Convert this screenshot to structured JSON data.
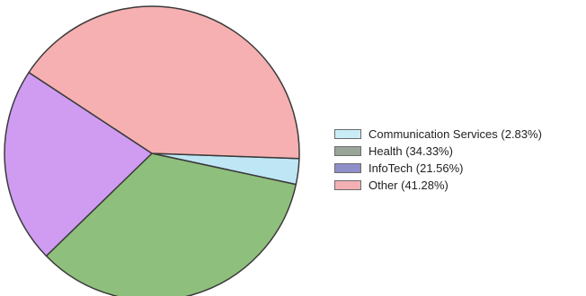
{
  "chart_data": {
    "type": "pie",
    "title": "",
    "start_angle_deg": 2,
    "direction": "clockwise",
    "slices": [
      {
        "label": "Communication Services",
        "value": 2.83,
        "color": "#bfe6f5",
        "legend": "Communication Services (2.83%)"
      },
      {
        "label": "Health",
        "value": 34.33,
        "color": "#8fbf7c",
        "legend": "Health (34.33%)"
      },
      {
        "label": "InfoTech",
        "value": 21.56,
        "color": "#cf9cf2",
        "legend": "InfoTech (21.56%)"
      },
      {
        "label": "Other",
        "value": 41.28,
        "color": "#f6b0b1",
        "legend": "Other (41.28%)"
      }
    ],
    "legend_position": "right",
    "legend_colors": [
      "#c9ecf7",
      "#9aa59a",
      "#8f8fc8",
      "#f2b0b4"
    ]
  }
}
